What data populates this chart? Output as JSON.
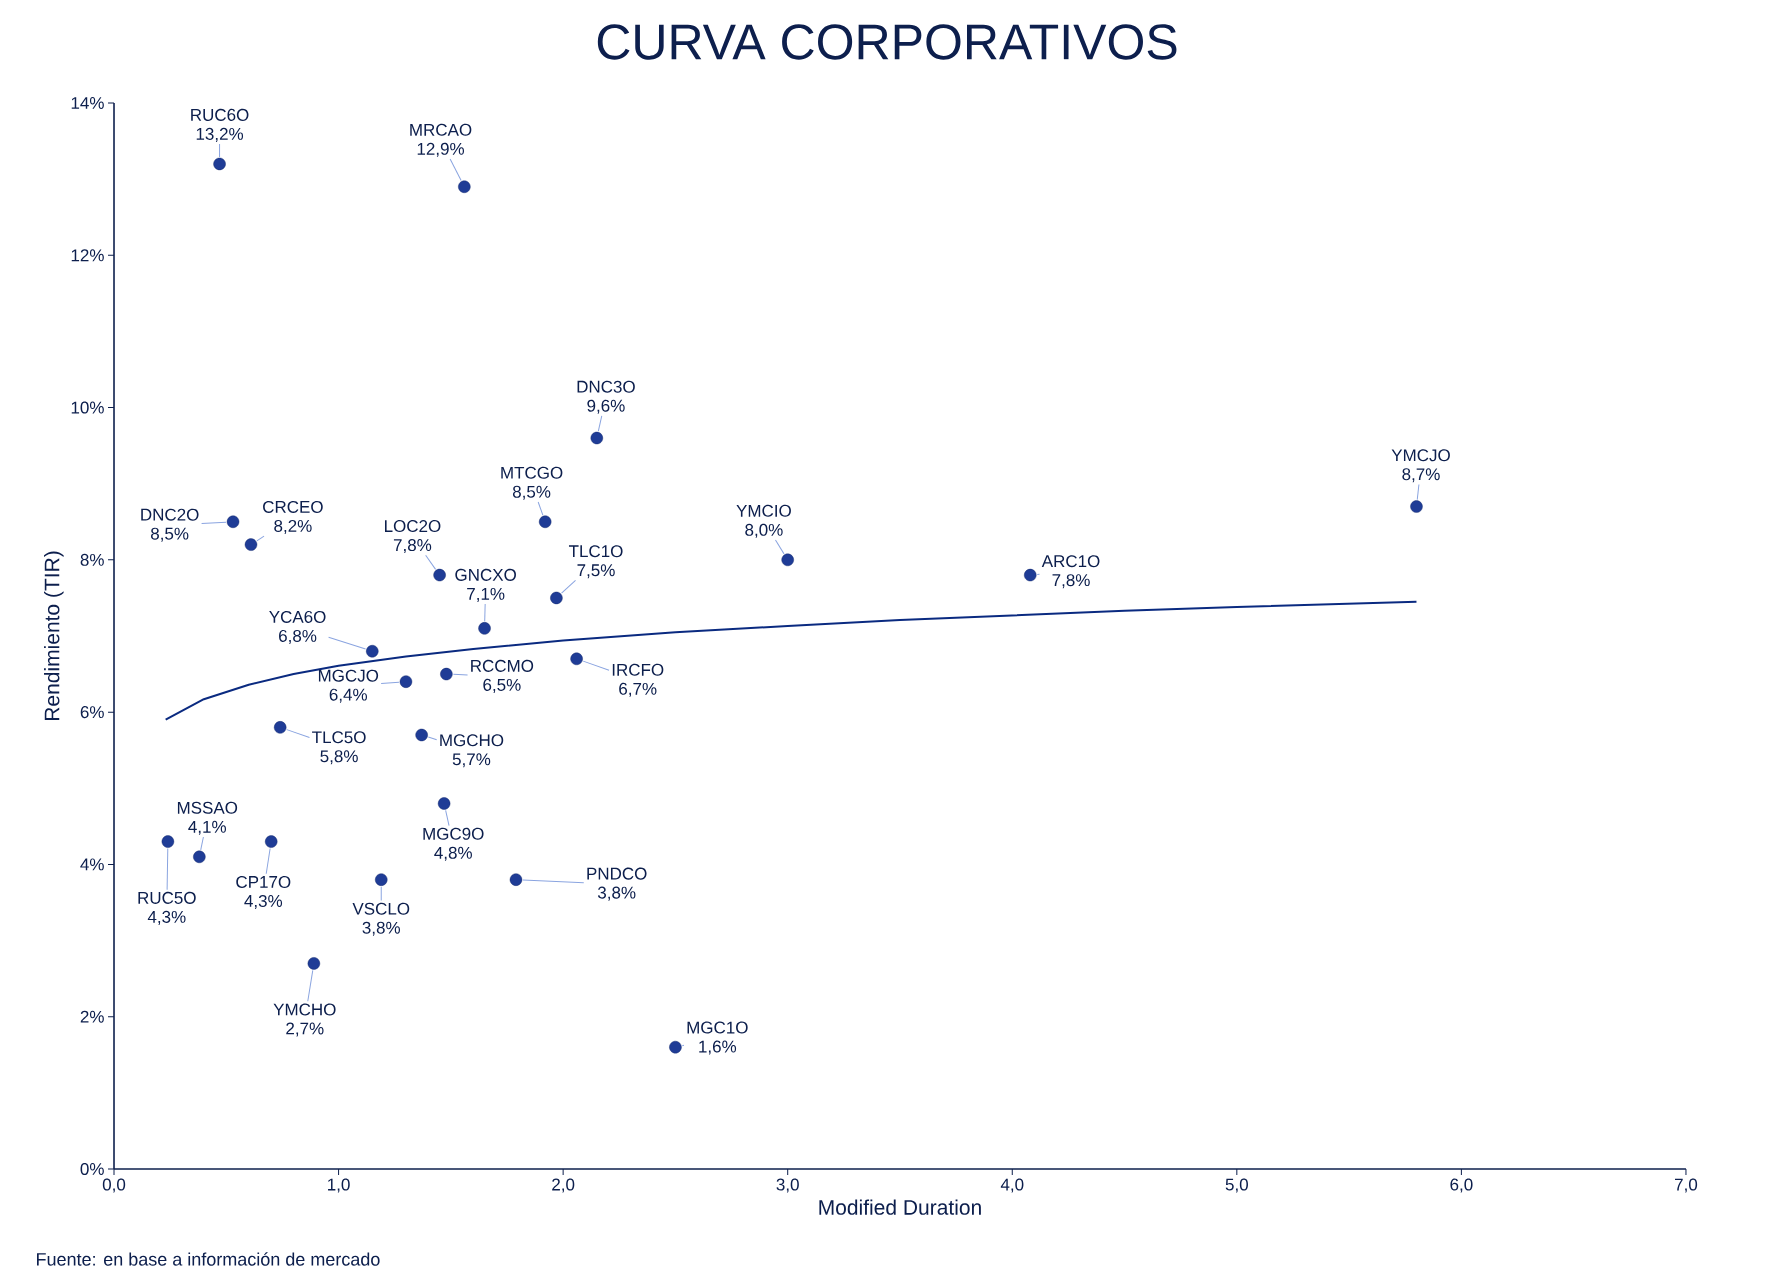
{
  "chart_data": {
    "type": "scatter",
    "title": "CURVA CORPORATIVOS",
    "xlabel": "Modified Duration",
    "ylabel": "Rendimiento (TIR)",
    "xlim": [
      0,
      7
    ],
    "ylim": [
      0,
      14
    ],
    "xticks": [
      {
        "value": 0,
        "label": "0,0"
      },
      {
        "value": 1,
        "label": "1,0"
      },
      {
        "value": 2,
        "label": "2,0"
      },
      {
        "value": 3,
        "label": "3,0"
      },
      {
        "value": 4,
        "label": "4,0"
      },
      {
        "value": 5,
        "label": "5,0"
      },
      {
        "value": 6,
        "label": "6,0"
      },
      {
        "value": 7,
        "label": "7,0"
      }
    ],
    "yticks": [
      {
        "value": 0,
        "label": "0%"
      },
      {
        "value": 2,
        "label": "2%"
      },
      {
        "value": 4,
        "label": "4%"
      },
      {
        "value": 6,
        "label": "6%"
      },
      {
        "value": 8,
        "label": "8%"
      },
      {
        "value": 10,
        "label": "10%"
      },
      {
        "value": 12,
        "label": "12%"
      },
      {
        "value": 14,
        "label": "14%"
      }
    ],
    "grid": false,
    "series": [
      {
        "marker": "circle",
        "color": "#1f3c96",
        "x": [
          0.47,
          1.56,
          2.15,
          5.8,
          0.53,
          0.61,
          1.92,
          3.0,
          1.45,
          4.08,
          1.97,
          1.65,
          1.15,
          2.06,
          1.48,
          1.3,
          0.74,
          1.37,
          1.47,
          0.24,
          0.38,
          0.7,
          1.19,
          1.79,
          0.89,
          2.5
        ],
        "values": [
          13.2,
          12.9,
          9.6,
          8.7,
          8.5,
          8.2,
          8.5,
          8.0,
          7.8,
          7.8,
          7.5,
          7.1,
          6.8,
          6.7,
          6.5,
          6.4,
          5.8,
          5.7,
          4.8,
          4.3,
          4.1,
          4.3,
          3.8,
          3.8,
          2.7,
          1.6
        ],
        "value_labels": [
          "13,2%",
          "12,9%",
          "9,6%",
          "8,7%",
          "8,5%",
          "8,2%",
          "8,5%",
          "8,0%",
          "7,8%",
          "7,8%",
          "7,5%",
          "7,1%",
          "6,8%",
          "6,7%",
          "6,5%",
          "6,4%",
          "5,8%",
          "5,7%",
          "4,8%",
          "4,3%",
          "4,1%",
          "4,3%",
          "3,8%",
          "3,8%",
          "2,7%",
          "1,6%"
        ]
      },
      {
        "type": "line",
        "marker": "none",
        "color": "#0a2a80",
        "x": [
          0.23,
          0.4,
          0.6,
          0.8,
          1.0,
          1.3,
          1.6,
          2.0,
          2.5,
          3.0,
          3.5,
          4.0,
          4.5,
          5.0,
          5.8
        ],
        "values": [
          5.9,
          6.17,
          6.36,
          6.5,
          6.61,
          6.73,
          6.83,
          6.94,
          7.05,
          7.13,
          7.21,
          7.27,
          7.33,
          7.38,
          7.45
        ]
      }
    ],
    "annotations": [
      {
        "text": "RUC6O",
        "x": 0.47,
        "y": 13.2
      },
      {
        "text": "MRCAO",
        "x": 1.56,
        "y": 12.9
      },
      {
        "text": "DNC3O",
        "x": 2.15,
        "y": 9.6
      },
      {
        "text": "YMCJO",
        "x": 5.8,
        "y": 8.7
      },
      {
        "text": "DNC2O",
        "x": 0.53,
        "y": 8.5
      },
      {
        "text": "CRCEO",
        "x": 0.61,
        "y": 8.2
      },
      {
        "text": "MTCGO",
        "x": 1.92,
        "y": 8.5
      },
      {
        "text": "YMCIO",
        "x": 3.0,
        "y": 8.0
      },
      {
        "text": "LOC2O",
        "x": 1.45,
        "y": 7.8
      },
      {
        "text": "ARC1O",
        "x": 4.08,
        "y": 7.8
      },
      {
        "text": "TLC1O",
        "x": 1.97,
        "y": 7.5
      },
      {
        "text": "GNCXO",
        "x": 1.65,
        "y": 7.1
      },
      {
        "text": "YCA6O",
        "x": 1.15,
        "y": 6.8
      },
      {
        "text": "IRCFO",
        "x": 2.06,
        "y": 6.7
      },
      {
        "text": "RCCMO",
        "x": 1.48,
        "y": 6.5
      },
      {
        "text": "MGCJO",
        "x": 1.3,
        "y": 6.4
      },
      {
        "text": "TLC5O",
        "x": 0.74,
        "y": 5.8
      },
      {
        "text": "MGCHO",
        "x": 1.37,
        "y": 5.7
      },
      {
        "text": "MGC9O",
        "x": 1.47,
        "y": 4.8
      },
      {
        "text": "RUC5O",
        "x": 0.24,
        "y": 4.3
      },
      {
        "text": "MSSAO",
        "x": 0.38,
        "y": 4.1
      },
      {
        "text": "CP17O",
        "x": 0.7,
        "y": 4.3
      },
      {
        "text": "VSCLO",
        "x": 1.19,
        "y": 3.8
      },
      {
        "text": "PNDCO",
        "x": 1.79,
        "y": 3.8
      },
      {
        "text": "YMCHO",
        "x": 0.89,
        "y": 2.7
      },
      {
        "text": "MGC1O",
        "x": 2.5,
        "y": 1.6
      },
      "Fuente: en base a información de mercado"
    ]
  }
}
